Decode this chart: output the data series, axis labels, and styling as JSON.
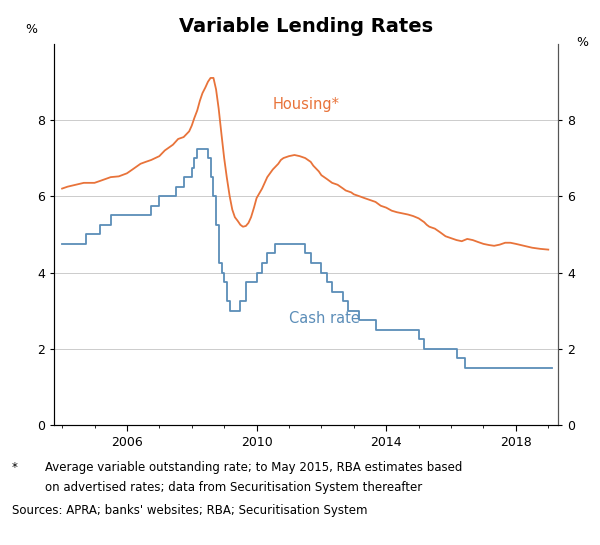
{
  "title": "Variable Lending Rates",
  "title_fontsize": 14,
  "title_fontweight": "bold",
  "ylabel_left": "%",
  "ylabel_right": "%",
  "ylim": [
    0,
    10
  ],
  "yticks": [
    0,
    2,
    4,
    6,
    8
  ],
  "xlim_start": 2003.75,
  "xlim_end": 2019.3,
  "xtick_years": [
    2006,
    2010,
    2014,
    2018
  ],
  "housing_color": "#E8733A",
  "cash_color": "#5B8DB8",
  "housing_label": "Housing*",
  "cash_label": "Cash rate",
  "footnote_star": "*",
  "footnote_line1": "Average variable outstanding rate; to May 2015, RBA estimates based",
  "footnote_line2": "on advertised rates; data from Securitisation System thereafter",
  "footnote_sources": "Sources: APRA; banks' websites; RBA; Securitisation System",
  "housing_data": [
    [
      2004.0,
      6.2
    ],
    [
      2004.17,
      6.25
    ],
    [
      2004.42,
      6.3
    ],
    [
      2004.67,
      6.35
    ],
    [
      2005.0,
      6.35
    ],
    [
      2005.17,
      6.4
    ],
    [
      2005.5,
      6.5
    ],
    [
      2005.75,
      6.52
    ],
    [
      2006.0,
      6.6
    ],
    [
      2006.17,
      6.7
    ],
    [
      2006.42,
      6.85
    ],
    [
      2006.58,
      6.9
    ],
    [
      2006.75,
      6.95
    ],
    [
      2007.0,
      7.05
    ],
    [
      2007.17,
      7.2
    ],
    [
      2007.42,
      7.35
    ],
    [
      2007.58,
      7.5
    ],
    [
      2007.75,
      7.55
    ],
    [
      2007.92,
      7.7
    ],
    [
      2008.0,
      7.85
    ],
    [
      2008.08,
      8.05
    ],
    [
      2008.17,
      8.25
    ],
    [
      2008.25,
      8.5
    ],
    [
      2008.33,
      8.7
    ],
    [
      2008.42,
      8.85
    ],
    [
      2008.5,
      9.0
    ],
    [
      2008.58,
      9.1
    ],
    [
      2008.67,
      9.1
    ],
    [
      2008.75,
      8.8
    ],
    [
      2008.83,
      8.3
    ],
    [
      2008.92,
      7.6
    ],
    [
      2009.0,
      7.0
    ],
    [
      2009.08,
      6.5
    ],
    [
      2009.17,
      6.0
    ],
    [
      2009.25,
      5.65
    ],
    [
      2009.33,
      5.45
    ],
    [
      2009.42,
      5.35
    ],
    [
      2009.5,
      5.25
    ],
    [
      2009.58,
      5.2
    ],
    [
      2009.67,
      5.22
    ],
    [
      2009.75,
      5.3
    ],
    [
      2009.83,
      5.45
    ],
    [
      2009.92,
      5.7
    ],
    [
      2010.0,
      5.95
    ],
    [
      2010.17,
      6.2
    ],
    [
      2010.33,
      6.5
    ],
    [
      2010.5,
      6.7
    ],
    [
      2010.67,
      6.85
    ],
    [
      2010.75,
      6.95
    ],
    [
      2010.83,
      7.0
    ],
    [
      2011.0,
      7.05
    ],
    [
      2011.17,
      7.08
    ],
    [
      2011.33,
      7.05
    ],
    [
      2011.5,
      7.0
    ],
    [
      2011.67,
      6.9
    ],
    [
      2011.75,
      6.8
    ],
    [
      2011.92,
      6.65
    ],
    [
      2012.0,
      6.55
    ],
    [
      2012.17,
      6.45
    ],
    [
      2012.25,
      6.4
    ],
    [
      2012.33,
      6.35
    ],
    [
      2012.5,
      6.3
    ],
    [
      2012.67,
      6.2
    ],
    [
      2012.75,
      6.15
    ],
    [
      2012.92,
      6.1
    ],
    [
      2013.0,
      6.05
    ],
    [
      2013.17,
      6.0
    ],
    [
      2013.33,
      5.95
    ],
    [
      2013.5,
      5.9
    ],
    [
      2013.67,
      5.85
    ],
    [
      2013.83,
      5.75
    ],
    [
      2014.0,
      5.7
    ],
    [
      2014.17,
      5.62
    ],
    [
      2014.33,
      5.58
    ],
    [
      2014.5,
      5.55
    ],
    [
      2014.67,
      5.52
    ],
    [
      2014.83,
      5.48
    ],
    [
      2015.0,
      5.42
    ],
    [
      2015.17,
      5.32
    ],
    [
      2015.25,
      5.25
    ],
    [
      2015.33,
      5.2
    ],
    [
      2015.5,
      5.15
    ],
    [
      2015.67,
      5.05
    ],
    [
      2015.75,
      5.0
    ],
    [
      2015.83,
      4.95
    ],
    [
      2016.0,
      4.9
    ],
    [
      2016.17,
      4.85
    ],
    [
      2016.33,
      4.82
    ],
    [
      2016.5,
      4.88
    ],
    [
      2016.67,
      4.85
    ],
    [
      2016.83,
      4.8
    ],
    [
      2017.0,
      4.75
    ],
    [
      2017.17,
      4.72
    ],
    [
      2017.33,
      4.7
    ],
    [
      2017.5,
      4.73
    ],
    [
      2017.67,
      4.78
    ],
    [
      2017.83,
      4.78
    ],
    [
      2018.0,
      4.75
    ],
    [
      2018.25,
      4.7
    ],
    [
      2018.5,
      4.65
    ],
    [
      2018.75,
      4.62
    ],
    [
      2019.0,
      4.6
    ]
  ],
  "cash_data": [
    [
      2004.0,
      4.75
    ],
    [
      2004.75,
      4.75
    ],
    [
      2004.75,
      5.0
    ],
    [
      2005.17,
      5.0
    ],
    [
      2005.17,
      5.25
    ],
    [
      2005.5,
      5.25
    ],
    [
      2005.5,
      5.5
    ],
    [
      2006.75,
      5.5
    ],
    [
      2006.75,
      5.75
    ],
    [
      2007.0,
      5.75
    ],
    [
      2007.0,
      6.0
    ],
    [
      2007.5,
      6.0
    ],
    [
      2007.5,
      6.25
    ],
    [
      2007.75,
      6.25
    ],
    [
      2007.75,
      6.5
    ],
    [
      2008.0,
      6.5
    ],
    [
      2008.0,
      6.75
    ],
    [
      2008.08,
      6.75
    ],
    [
      2008.08,
      7.0
    ],
    [
      2008.17,
      7.0
    ],
    [
      2008.17,
      7.25
    ],
    [
      2008.5,
      7.25
    ],
    [
      2008.5,
      7.0
    ],
    [
      2008.58,
      7.0
    ],
    [
      2008.58,
      6.5
    ],
    [
      2008.67,
      6.5
    ],
    [
      2008.67,
      6.0
    ],
    [
      2008.75,
      6.0
    ],
    [
      2008.75,
      5.25
    ],
    [
      2008.83,
      5.25
    ],
    [
      2008.83,
      4.25
    ],
    [
      2008.92,
      4.25
    ],
    [
      2008.92,
      4.0
    ],
    [
      2009.0,
      4.0
    ],
    [
      2009.0,
      3.75
    ],
    [
      2009.08,
      3.75
    ],
    [
      2009.08,
      3.25
    ],
    [
      2009.17,
      3.25
    ],
    [
      2009.17,
      3.0
    ],
    [
      2009.5,
      3.0
    ],
    [
      2009.5,
      3.25
    ],
    [
      2009.67,
      3.25
    ],
    [
      2009.67,
      3.75
    ],
    [
      2010.0,
      3.75
    ],
    [
      2010.0,
      4.0
    ],
    [
      2010.17,
      4.0
    ],
    [
      2010.17,
      4.25
    ],
    [
      2010.33,
      4.25
    ],
    [
      2010.33,
      4.5
    ],
    [
      2010.58,
      4.5
    ],
    [
      2010.58,
      4.75
    ],
    [
      2011.5,
      4.75
    ],
    [
      2011.5,
      4.5
    ],
    [
      2011.67,
      4.5
    ],
    [
      2011.67,
      4.25
    ],
    [
      2012.0,
      4.25
    ],
    [
      2012.0,
      4.0
    ],
    [
      2012.17,
      4.0
    ],
    [
      2012.17,
      3.75
    ],
    [
      2012.33,
      3.75
    ],
    [
      2012.33,
      3.5
    ],
    [
      2012.67,
      3.5
    ],
    [
      2012.67,
      3.25
    ],
    [
      2012.83,
      3.25
    ],
    [
      2012.83,
      3.0
    ],
    [
      2013.17,
      3.0
    ],
    [
      2013.17,
      2.75
    ],
    [
      2013.67,
      2.75
    ],
    [
      2013.67,
      2.5
    ],
    [
      2015.0,
      2.5
    ],
    [
      2015.0,
      2.25
    ],
    [
      2015.17,
      2.25
    ],
    [
      2015.17,
      2.0
    ],
    [
      2016.17,
      2.0
    ],
    [
      2016.17,
      1.75
    ],
    [
      2016.42,
      1.75
    ],
    [
      2016.42,
      1.5
    ],
    [
      2019.1,
      1.5
    ]
  ]
}
